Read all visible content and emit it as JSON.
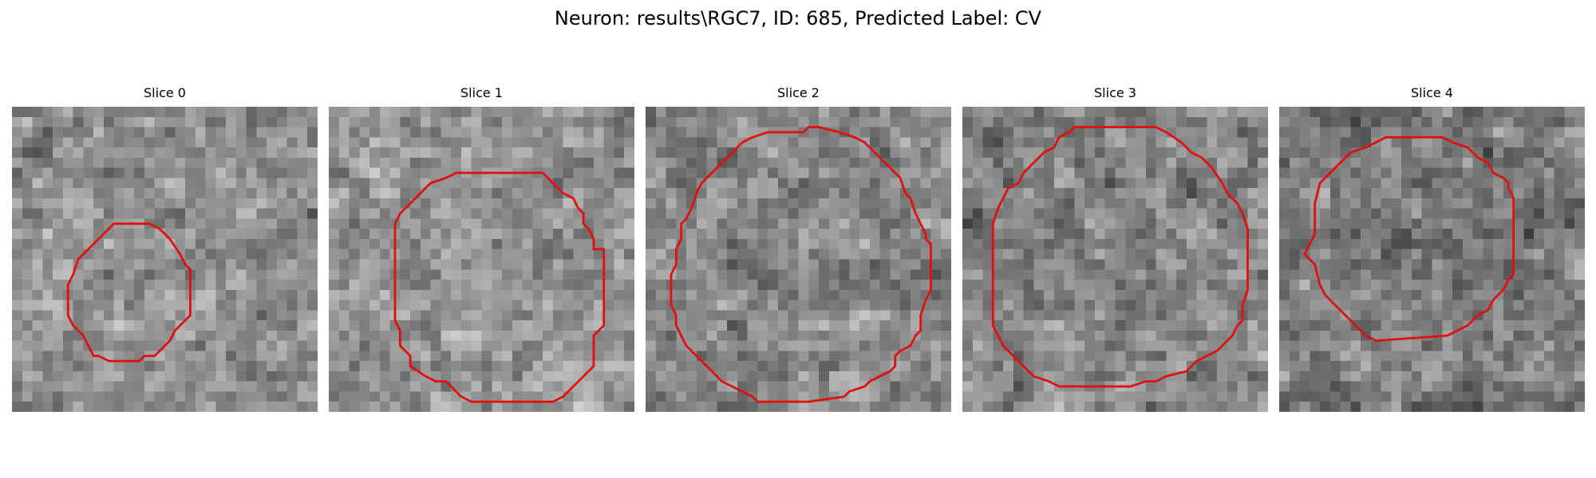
{
  "title": "Neuron: results\\RGC7, ID: 685, Predicted Label: CV",
  "contour_color": "#e01010",
  "panels": [
    {
      "title": "Slice 0",
      "brightness": 0.56,
      "contrast": 0.2,
      "seed": 11
    },
    {
      "title": "Slice 1",
      "brightness": 0.58,
      "contrast": 0.2,
      "seed": 23
    },
    {
      "title": "Slice 2",
      "brightness": 0.53,
      "contrast": 0.22,
      "seed": 37
    },
    {
      "title": "Slice 3",
      "brightness": 0.52,
      "contrast": 0.22,
      "seed": 51
    },
    {
      "title": "Slice 4",
      "brightness": 0.49,
      "contrast": 0.21,
      "seed": 67
    }
  ]
}
